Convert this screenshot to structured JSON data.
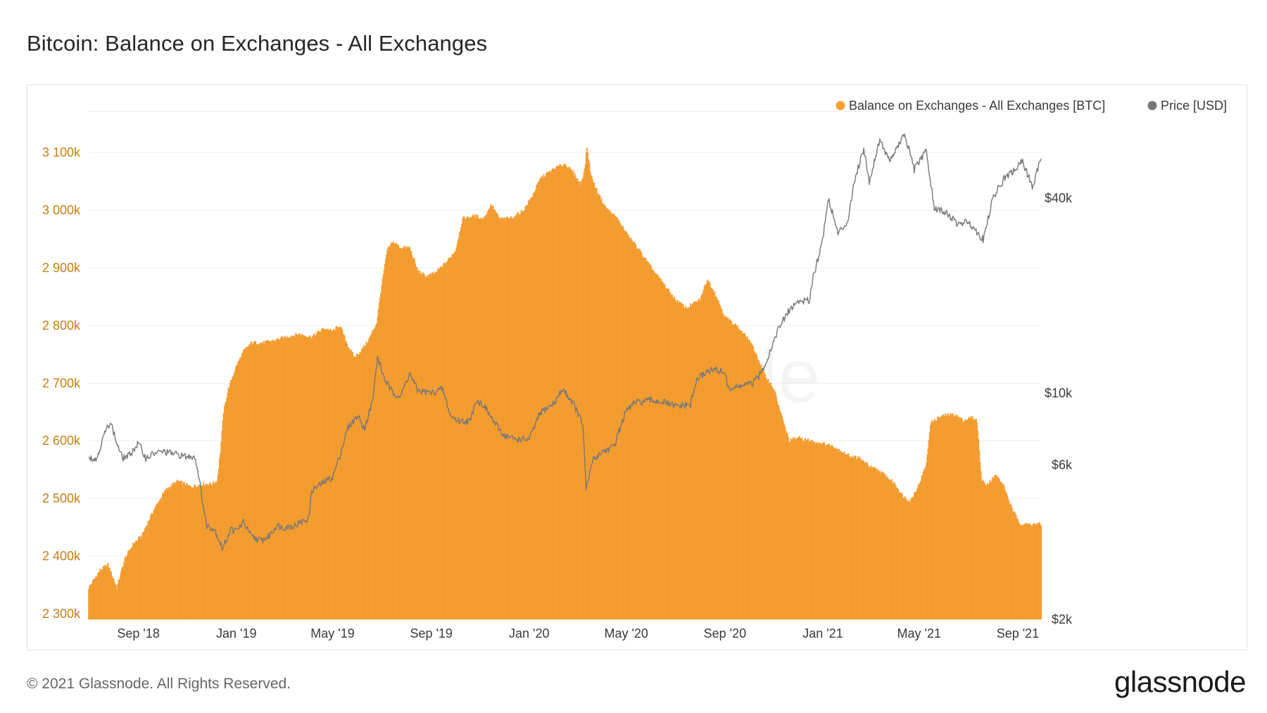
{
  "page": {
    "title": "Bitcoin: Balance on Exchanges - All Exchanges",
    "copyright": "© 2021 Glassnode. All Rights Reserved.",
    "logo": "glassnode",
    "watermark": "glassnode"
  },
  "colors": {
    "balance": "#f7a035",
    "balance_edge": "#e38f22",
    "price": "#777777",
    "left_axis": "#c77d10",
    "grid": "#eeeeee"
  },
  "legend": [
    {
      "label": "Balance on Exchanges - All Exchanges [BTC]",
      "color": "#f7a035"
    },
    {
      "label": "Price [USD]",
      "color": "#777777"
    }
  ],
  "chart_data": {
    "type": "area",
    "x_start": "2018-07-01",
    "x_end": "2021-09-30",
    "x_tick_labels": [
      {
        "date": "2018-09-01",
        "label": "Sep '18"
      },
      {
        "date": "2019-01-01",
        "label": "Jan '19"
      },
      {
        "date": "2019-05-01",
        "label": "May '19"
      },
      {
        "date": "2019-09-01",
        "label": "Sep '19"
      },
      {
        "date": "2020-01-01",
        "label": "Jan '20"
      },
      {
        "date": "2020-05-01",
        "label": "May '20"
      },
      {
        "date": "2020-09-01",
        "label": "Sep '20"
      },
      {
        "date": "2021-01-01",
        "label": "Jan '21"
      },
      {
        "date": "2021-05-01",
        "label": "May '21"
      },
      {
        "date": "2021-09-01",
        "label": "Sep '21"
      }
    ],
    "left_axis": {
      "ylim": [
        2290000,
        3190000
      ],
      "ticks": [
        {
          "value": 2300000,
          "label": "2 300k"
        },
        {
          "value": 2400000,
          "label": "2 400k"
        },
        {
          "value": 2500000,
          "label": "2 500k"
        },
        {
          "value": 2600000,
          "label": "2 600k"
        },
        {
          "value": 2700000,
          "label": "2 700k"
        },
        {
          "value": 2800000,
          "label": "2 800k"
        },
        {
          "value": 2900000,
          "label": "2 900k"
        },
        {
          "value": 3000000,
          "label": "3 000k"
        },
        {
          "value": 3100000,
          "label": "3 100k"
        }
      ]
    },
    "right_axis": {
      "scale": "log",
      "ylim": [
        2000,
        80000
      ],
      "ticks": [
        {
          "value": 2000,
          "label": "$2k"
        },
        {
          "value": 6000,
          "label": "$6k"
        },
        {
          "value": 10000,
          "label": "$10k"
        },
        {
          "value": 40000,
          "label": "$40k"
        }
      ]
    },
    "series": [
      {
        "name": "Balance on Exchanges - All Exchanges [BTC]",
        "axis": "left",
        "style": "bars",
        "points": [
          [
            "2018-07-01",
            2345000
          ],
          [
            "2018-07-15",
            2375000
          ],
          [
            "2018-07-25",
            2385000
          ],
          [
            "2018-08-05",
            2345000
          ],
          [
            "2018-08-15",
            2395000
          ],
          [
            "2018-08-25",
            2420000
          ],
          [
            "2018-09-05",
            2435000
          ],
          [
            "2018-09-20",
            2480000
          ],
          [
            "2018-10-05",
            2515000
          ],
          [
            "2018-10-20",
            2530000
          ],
          [
            "2018-11-05",
            2520000
          ],
          [
            "2018-11-20",
            2525000
          ],
          [
            "2018-12-01",
            2525000
          ],
          [
            "2018-12-08",
            2530000
          ],
          [
            "2018-12-12",
            2580000
          ],
          [
            "2018-12-16",
            2650000
          ],
          [
            "2018-12-22",
            2690000
          ],
          [
            "2019-01-01",
            2730000
          ],
          [
            "2019-01-10",
            2755000
          ],
          [
            "2019-01-20",
            2770000
          ],
          [
            "2019-02-05",
            2770000
          ],
          [
            "2019-02-20",
            2775000
          ],
          [
            "2019-03-05",
            2780000
          ],
          [
            "2019-03-20",
            2785000
          ],
          [
            "2019-04-05",
            2780000
          ],
          [
            "2019-04-20",
            2795000
          ],
          [
            "2019-05-01",
            2790000
          ],
          [
            "2019-05-10",
            2800000
          ],
          [
            "2019-05-20",
            2765000
          ],
          [
            "2019-05-28",
            2745000
          ],
          [
            "2019-06-05",
            2755000
          ],
          [
            "2019-06-15",
            2775000
          ],
          [
            "2019-06-25",
            2805000
          ],
          [
            "2019-07-01",
            2870000
          ],
          [
            "2019-07-08",
            2930000
          ],
          [
            "2019-07-15",
            2945000
          ],
          [
            "2019-07-25",
            2935000
          ],
          [
            "2019-08-05",
            2935000
          ],
          [
            "2019-08-15",
            2895000
          ],
          [
            "2019-08-25",
            2885000
          ],
          [
            "2019-09-05",
            2890000
          ],
          [
            "2019-09-20",
            2910000
          ],
          [
            "2019-10-01",
            2930000
          ],
          [
            "2019-10-10",
            2985000
          ],
          [
            "2019-10-25",
            2990000
          ],
          [
            "2019-11-05",
            2985000
          ],
          [
            "2019-11-15",
            3010000
          ],
          [
            "2019-11-25",
            2985000
          ],
          [
            "2019-12-05",
            2985000
          ],
          [
            "2019-12-15",
            2990000
          ],
          [
            "2019-12-25",
            3000000
          ],
          [
            "2020-01-05",
            3025000
          ],
          [
            "2020-01-15",
            3055000
          ],
          [
            "2020-01-25",
            3065000
          ],
          [
            "2020-02-05",
            3075000
          ],
          [
            "2020-02-15",
            3080000
          ],
          [
            "2020-02-25",
            3065000
          ],
          [
            "2020-03-05",
            3045000
          ],
          [
            "2020-03-10",
            3070000
          ],
          [
            "2020-03-13",
            3110000
          ],
          [
            "2020-03-18",
            3060000
          ],
          [
            "2020-03-25",
            3035000
          ],
          [
            "2020-04-05",
            3005000
          ],
          [
            "2020-04-20",
            2985000
          ],
          [
            "2020-05-01",
            2960000
          ],
          [
            "2020-05-15",
            2935000
          ],
          [
            "2020-06-01",
            2900000
          ],
          [
            "2020-06-15",
            2875000
          ],
          [
            "2020-07-01",
            2845000
          ],
          [
            "2020-07-15",
            2830000
          ],
          [
            "2020-08-01",
            2845000
          ],
          [
            "2020-08-10",
            2880000
          ],
          [
            "2020-08-20",
            2855000
          ],
          [
            "2020-09-01",
            2815000
          ],
          [
            "2020-09-15",
            2800000
          ],
          [
            "2020-10-01",
            2775000
          ],
          [
            "2020-10-10",
            2750000
          ],
          [
            "2020-10-20",
            2715000
          ],
          [
            "2020-11-01",
            2690000
          ],
          [
            "2020-11-10",
            2645000
          ],
          [
            "2020-11-20",
            2600000
          ],
          [
            "2020-12-01",
            2605000
          ],
          [
            "2020-12-15",
            2600000
          ],
          [
            "2021-01-01",
            2595000
          ],
          [
            "2021-01-15",
            2590000
          ],
          [
            "2021-02-01",
            2575000
          ],
          [
            "2021-02-15",
            2570000
          ],
          [
            "2021-03-01",
            2555000
          ],
          [
            "2021-03-15",
            2545000
          ],
          [
            "2021-04-01",
            2525000
          ],
          [
            "2021-04-10",
            2505000
          ],
          [
            "2021-04-20",
            2495000
          ],
          [
            "2021-05-01",
            2525000
          ],
          [
            "2021-05-10",
            2560000
          ],
          [
            "2021-05-15",
            2630000
          ],
          [
            "2021-05-25",
            2640000
          ],
          [
            "2021-06-05",
            2645000
          ],
          [
            "2021-06-15",
            2645000
          ],
          [
            "2021-06-25",
            2635000
          ],
          [
            "2021-07-05",
            2640000
          ],
          [
            "2021-07-12",
            2635000
          ],
          [
            "2021-07-18",
            2530000
          ],
          [
            "2021-07-25",
            2525000
          ],
          [
            "2021-08-05",
            2540000
          ],
          [
            "2021-08-15",
            2520000
          ],
          [
            "2021-08-25",
            2480000
          ],
          [
            "2021-09-05",
            2455000
          ],
          [
            "2021-09-15",
            2455000
          ],
          [
            "2021-09-30",
            2455000
          ]
        ]
      },
      {
        "name": "Price [USD]",
        "axis": "right",
        "style": "line",
        "points": [
          [
            "2018-07-01",
            6400
          ],
          [
            "2018-07-10",
            6200
          ],
          [
            "2018-07-20",
            7400
          ],
          [
            "2018-07-28",
            8200
          ],
          [
            "2018-08-05",
            7000
          ],
          [
            "2018-08-12",
            6300
          ],
          [
            "2018-08-20",
            6400
          ],
          [
            "2018-09-01",
            7000
          ],
          [
            "2018-09-10",
            6300
          ],
          [
            "2018-09-20",
            6500
          ],
          [
            "2018-10-01",
            6600
          ],
          [
            "2018-10-15",
            6500
          ],
          [
            "2018-11-01",
            6350
          ],
          [
            "2018-11-10",
            6400
          ],
          [
            "2018-11-15",
            5600
          ],
          [
            "2018-11-20",
            4600
          ],
          [
            "2018-11-25",
            3900
          ],
          [
            "2018-12-05",
            3800
          ],
          [
            "2018-12-15",
            3300
          ],
          [
            "2018-12-25",
            3800
          ],
          [
            "2019-01-01",
            3750
          ],
          [
            "2019-01-10",
            4000
          ],
          [
            "2019-01-20",
            3600
          ],
          [
            "2019-02-01",
            3500
          ],
          [
            "2019-02-10",
            3600
          ],
          [
            "2019-02-20",
            3900
          ],
          [
            "2019-03-01",
            3850
          ],
          [
            "2019-03-15",
            3900
          ],
          [
            "2019-04-01",
            4100
          ],
          [
            "2019-04-05",
            5000
          ],
          [
            "2019-04-20",
            5300
          ],
          [
            "2019-05-01",
            5500
          ],
          [
            "2019-05-10",
            6400
          ],
          [
            "2019-05-20",
            7800
          ],
          [
            "2019-06-01",
            8500
          ],
          [
            "2019-06-10",
            7800
          ],
          [
            "2019-06-20",
            9500
          ],
          [
            "2019-06-26",
            12900
          ],
          [
            "2019-07-05",
            11000
          ],
          [
            "2019-07-15",
            10000
          ],
          [
            "2019-07-25",
            9800
          ],
          [
            "2019-08-05",
            11500
          ],
          [
            "2019-08-15",
            10200
          ],
          [
            "2019-09-01",
            10000
          ],
          [
            "2019-09-15",
            10300
          ],
          [
            "2019-09-25",
            8500
          ],
          [
            "2019-10-05",
            8200
          ],
          [
            "2019-10-20",
            8200
          ],
          [
            "2019-10-26",
            9500
          ],
          [
            "2019-11-05",
            9200
          ],
          [
            "2019-11-20",
            8000
          ],
          [
            "2019-12-01",
            7400
          ],
          [
            "2019-12-15",
            7200
          ],
          [
            "2020-01-01",
            7200
          ],
          [
            "2020-01-15",
            8700
          ],
          [
            "2020-02-01",
            9300
          ],
          [
            "2020-02-12",
            10300
          ],
          [
            "2020-02-25",
            9300
          ],
          [
            "2020-03-08",
            8000
          ],
          [
            "2020-03-12",
            5000
          ],
          [
            "2020-03-20",
            6200
          ],
          [
            "2020-04-01",
            6600
          ],
          [
            "2020-04-15",
            6800
          ],
          [
            "2020-04-30",
            8700
          ],
          [
            "2020-05-10",
            9300
          ],
          [
            "2020-06-01",
            9500
          ],
          [
            "2020-06-15",
            9400
          ],
          [
            "2020-07-01",
            9100
          ],
          [
            "2020-07-20",
            9200
          ],
          [
            "2020-07-28",
            11000
          ],
          [
            "2020-08-10",
            11700
          ],
          [
            "2020-08-20",
            11800
          ],
          [
            "2020-09-01",
            11600
          ],
          [
            "2020-09-05",
            10300
          ],
          [
            "2020-09-20",
            10500
          ],
          [
            "2020-10-05",
            10700
          ],
          [
            "2020-10-15",
            11400
          ],
          [
            "2020-10-25",
            13000
          ],
          [
            "2020-11-05",
            15500
          ],
          [
            "2020-11-20",
            18000
          ],
          [
            "2020-12-01",
            19200
          ],
          [
            "2020-12-15",
            19300
          ],
          [
            "2020-12-20",
            23000
          ],
          [
            "2020-12-31",
            29000
          ],
          [
            "2021-01-08",
            40000
          ],
          [
            "2021-01-20",
            31000
          ],
          [
            "2021-02-01",
            34000
          ],
          [
            "2021-02-10",
            46000
          ],
          [
            "2021-02-21",
            57000
          ],
          [
            "2021-02-28",
            45000
          ],
          [
            "2021-03-13",
            61000
          ],
          [
            "2021-03-25",
            52000
          ],
          [
            "2021-04-13",
            63000
          ],
          [
            "2021-04-25",
            49000
          ],
          [
            "2021-05-10",
            56000
          ],
          [
            "2021-05-20",
            37000
          ],
          [
            "2021-06-01",
            36500
          ],
          [
            "2021-06-20",
            33000
          ],
          [
            "2021-07-01",
            34000
          ],
          [
            "2021-07-20",
            29800
          ],
          [
            "2021-08-01",
            40000
          ],
          [
            "2021-08-15",
            46000
          ],
          [
            "2021-08-25",
            48000
          ],
          [
            "2021-09-07",
            52000
          ],
          [
            "2021-09-20",
            43000
          ],
          [
            "2021-09-30",
            54000
          ]
        ]
      }
    ]
  }
}
